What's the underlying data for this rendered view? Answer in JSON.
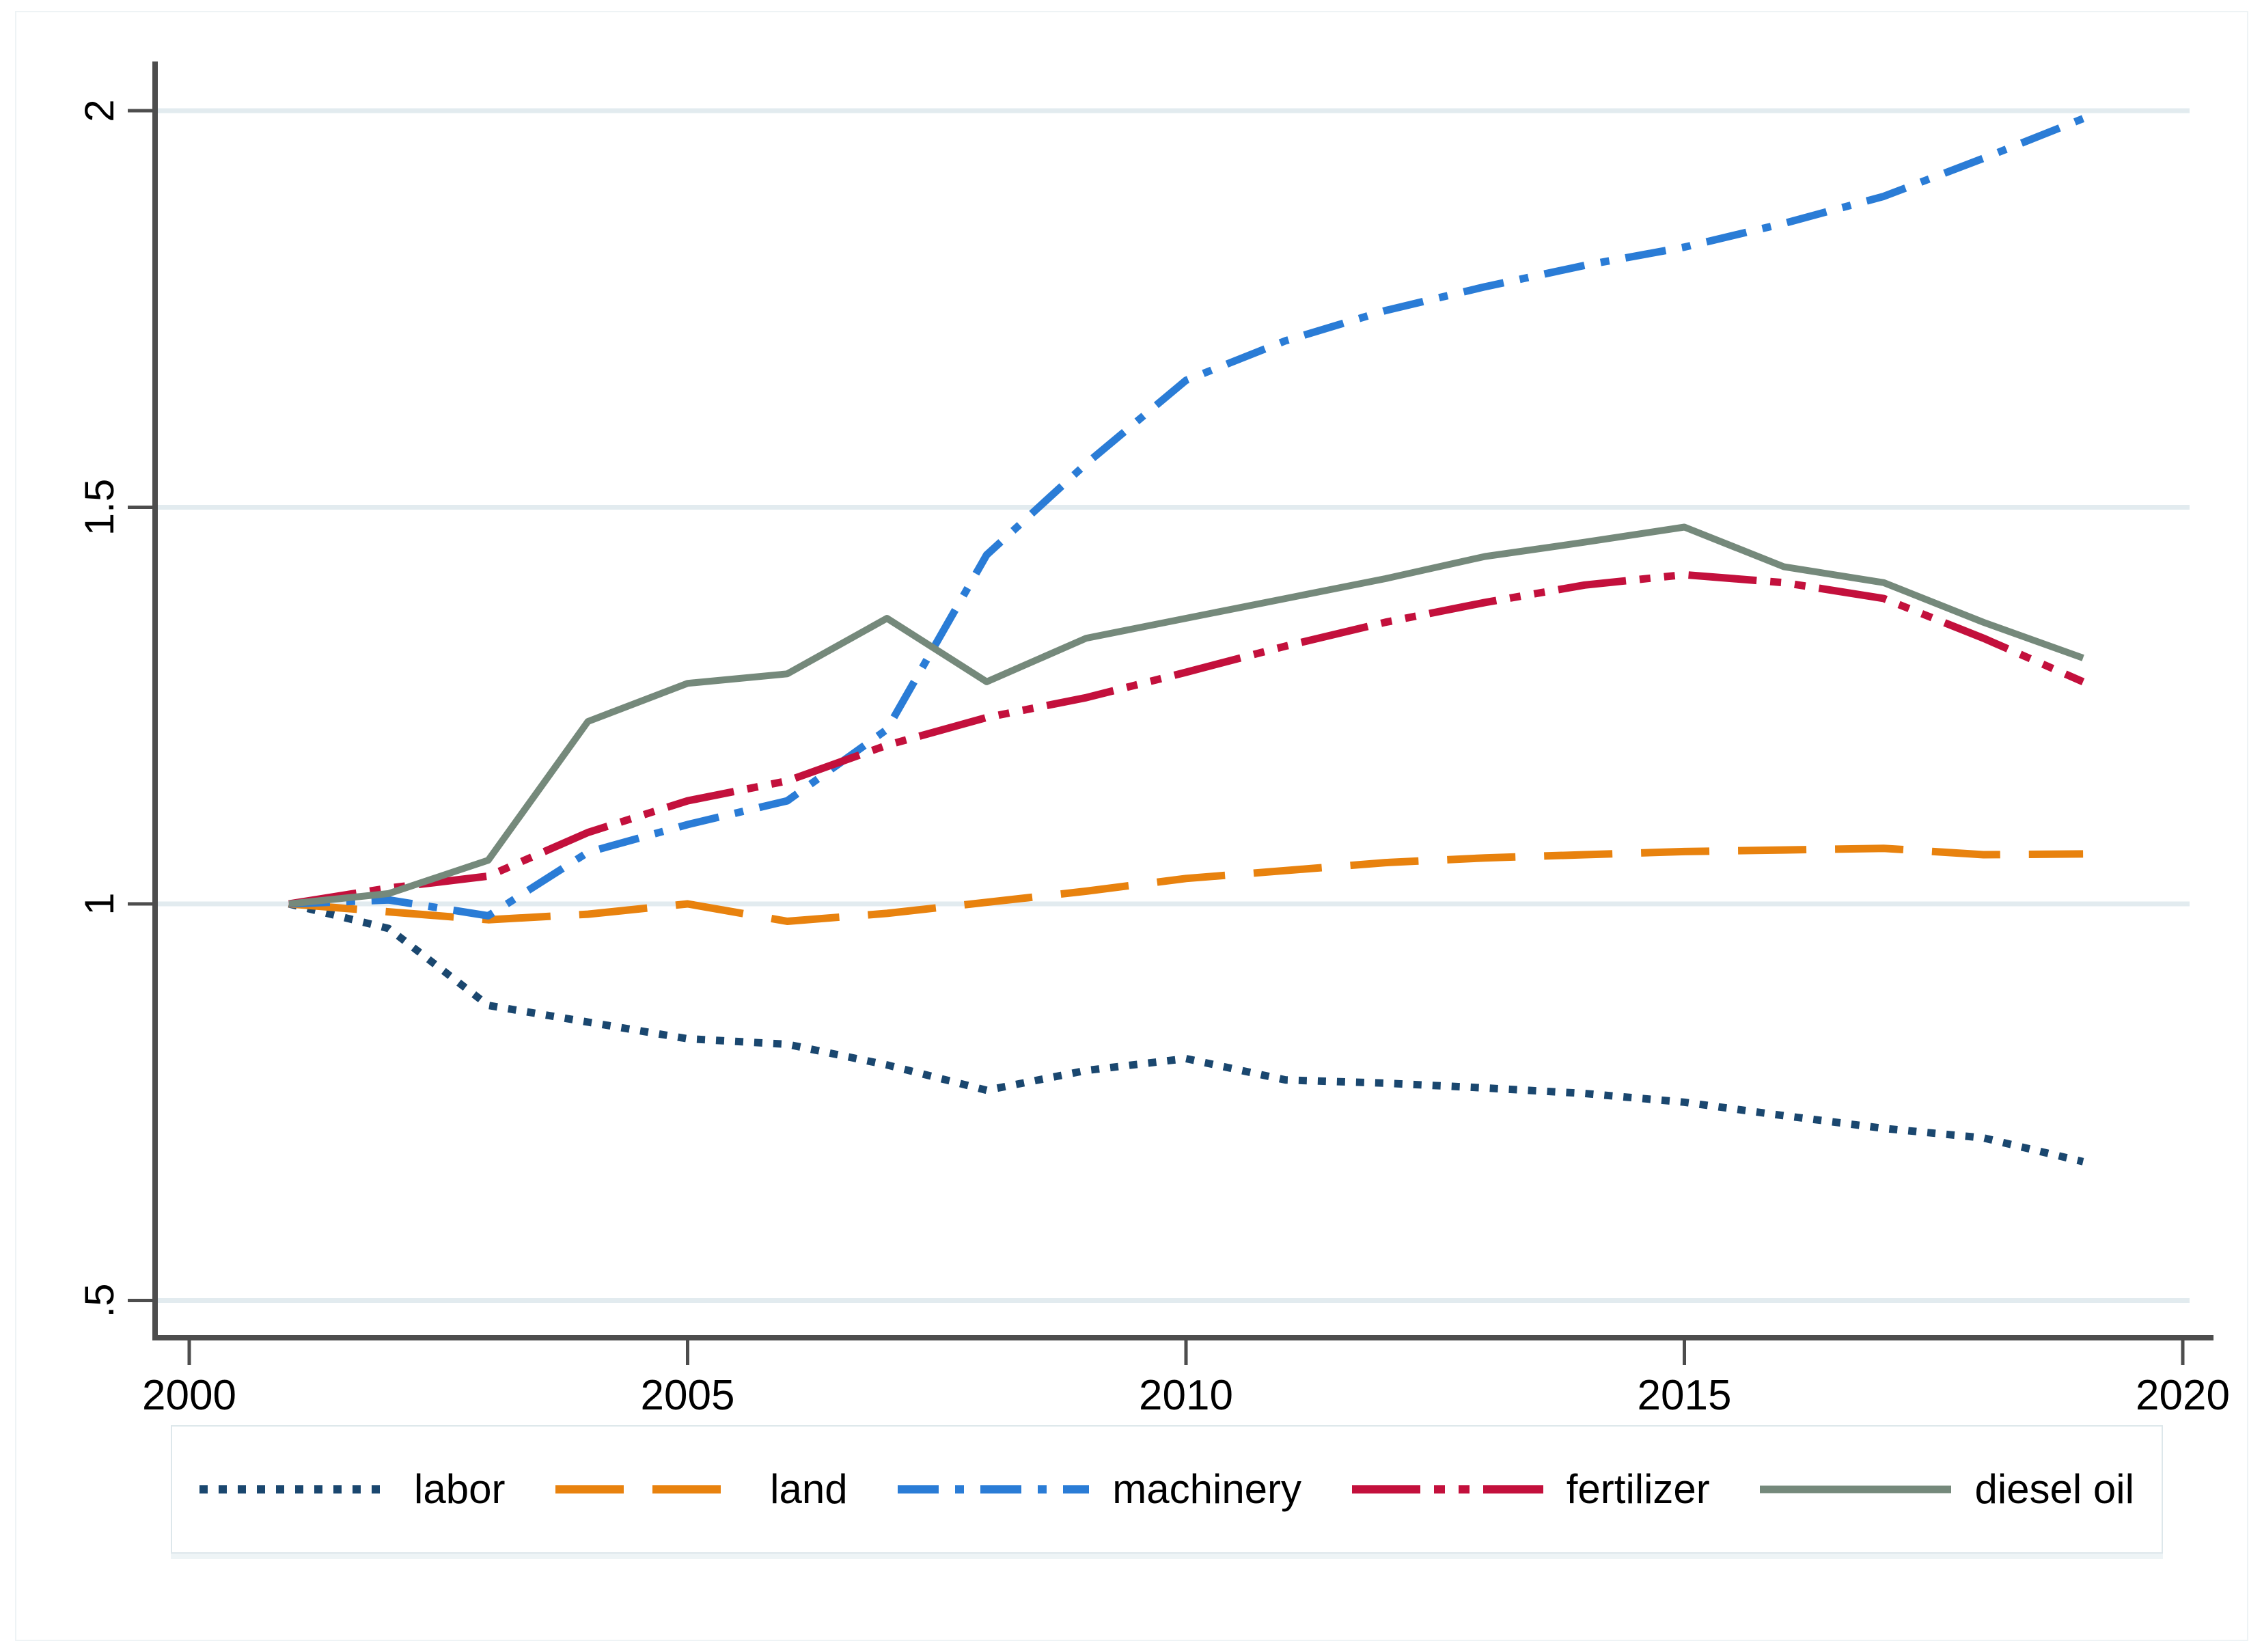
{
  "chart_data": {
    "type": "line",
    "title": "",
    "xlabel": "",
    "ylabel": "",
    "grid": true,
    "legend_position": "bottom",
    "x": [
      2001,
      2002,
      2003,
      2004,
      2005,
      2006,
      2007,
      2008,
      2009,
      2010,
      2011,
      2012,
      2013,
      2014,
      2015,
      2016,
      2017,
      2018,
      2019
    ],
    "xlim": [
      1999.65,
      2020.1
    ],
    "ylim": [
      0.45,
      2.06
    ],
    "x_ticks": [
      {
        "label": "2000",
        "value": 2000
      },
      {
        "label": "2005",
        "value": 2005
      },
      {
        "label": "2010",
        "value": 2010
      },
      {
        "label": "2015",
        "value": 2015
      },
      {
        "label": "2020",
        "value": 2020
      }
    ],
    "y_ticks": [
      {
        "label": ".5",
        "value": 0.5
      },
      {
        "label": "1",
        "value": 1
      },
      {
        "label": "1.5",
        "value": 1.5
      },
      {
        "label": "2",
        "value": 2
      }
    ],
    "series": [
      {
        "name": "labor",
        "color": "#1a476f",
        "dash": "12 16",
        "width": 11,
        "values": [
          1.0,
          0.969,
          0.872,
          0.851,
          0.83,
          0.823,
          0.797,
          0.765,
          0.79,
          0.805,
          0.778,
          0.774,
          0.768,
          0.761,
          0.75,
          0.733,
          0.717,
          0.705,
          0.675
        ]
      },
      {
        "name": "land",
        "color": "#e8820e",
        "dash": "100 42",
        "width": 11,
        "values": [
          1.0,
          0.99,
          0.98,
          0.987,
          1.0,
          0.978,
          0.988,
          1.002,
          1.016,
          1.032,
          1.042,
          1.052,
          1.058,
          1.062,
          1.066,
          1.068,
          1.07,
          1.062,
          1.063
        ]
      },
      {
        "name": "machinery",
        "color": "#2a7cd6",
        "dash": "60 24 13 24",
        "width": 11,
        "values": [
          1.0,
          1.005,
          0.985,
          1.065,
          1.1,
          1.13,
          1.22,
          1.44,
          1.555,
          1.66,
          1.71,
          1.748,
          1.778,
          1.805,
          1.828,
          1.858,
          1.892,
          1.94,
          1.99
        ]
      },
      {
        "name": "fertilizer",
        "color": "#c3103c",
        "dash": "100 20 16 20 16 20",
        "width": 11,
        "values": [
          1.0,
          1.02,
          1.035,
          1.09,
          1.13,
          1.155,
          1.2,
          1.235,
          1.26,
          1.292,
          1.325,
          1.355,
          1.38,
          1.402,
          1.415,
          1.405,
          1.385,
          1.335,
          1.28
        ]
      },
      {
        "name": "diesel oil",
        "color": "#75897b",
        "dash": "",
        "width": 10,
        "values": [
          1.0,
          1.013,
          1.055,
          1.23,
          1.278,
          1.29,
          1.36,
          1.28,
          1.335,
          1.36,
          1.385,
          1.41,
          1.438,
          1.456,
          1.475,
          1.425,
          1.405,
          1.355,
          1.31
        ]
      }
    ]
  },
  "legend": {
    "items": [
      {
        "label": "labor"
      },
      {
        "label": "land"
      },
      {
        "label": "machinery"
      },
      {
        "label": "fertilizer"
      },
      {
        "label": "diesel oil"
      }
    ]
  },
  "colors": {
    "background": "#ffffff",
    "grid": "#e2ebef",
    "axis": "#4d4d4d",
    "tick": "#4d4d4d",
    "text": "#000000",
    "figure_border": "#eef3f5",
    "legend_border": "#dde7eb"
  }
}
